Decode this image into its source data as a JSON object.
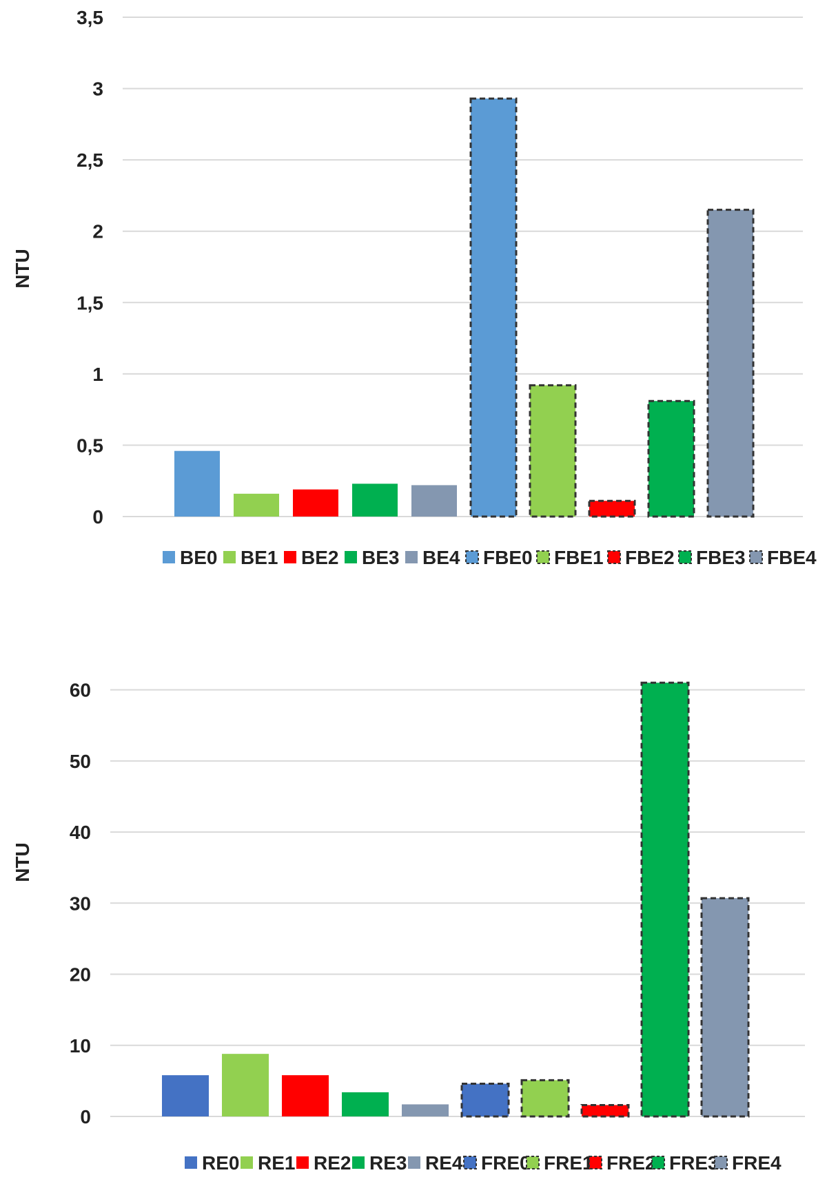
{
  "chart_data": [
    {
      "type": "bar",
      "title": "",
      "xlabel": "",
      "ylabel": "NTU",
      "ylim": [
        0,
        3.5
      ],
      "yticks": [
        "0",
        "0,5",
        "1",
        "1,5",
        "2",
        "2,5",
        "3",
        "3,5"
      ],
      "ytick_values": [
        0,
        0.5,
        1,
        1.5,
        2,
        2.5,
        3,
        3.5
      ],
      "grid": true,
      "legend_position": "bottom",
      "series": [
        {
          "name": "BE0",
          "values": [
            0.46
          ],
          "color": "#5B9BD5",
          "border": "none"
        },
        {
          "name": "BE1",
          "values": [
            0.16
          ],
          "color": "#92D050",
          "border": "none"
        },
        {
          "name": "BE2",
          "values": [
            0.19
          ],
          "color": "#FF0000",
          "border": "none"
        },
        {
          "name": "BE3",
          "values": [
            0.23
          ],
          "color": "#00B050",
          "border": "none"
        },
        {
          "name": "BE4",
          "values": [
            0.22
          ],
          "color": "#8497B0",
          "border": "none"
        },
        {
          "name": "FBE0",
          "values": [
            2.93
          ],
          "color": "#5B9BD5",
          "border": "dashed"
        },
        {
          "name": "FBE1",
          "values": [
            0.92
          ],
          "color": "#92D050",
          "border": "dashed"
        },
        {
          "name": "FBE2",
          "values": [
            0.11
          ],
          "color": "#FF0000",
          "border": "dashed"
        },
        {
          "name": "FBE3",
          "values": [
            0.81
          ],
          "color": "#00B050",
          "border": "dashed"
        },
        {
          "name": "FBE4",
          "values": [
            2.15
          ],
          "color": "#8497B0",
          "border": "dashed"
        }
      ]
    },
    {
      "type": "bar",
      "title": "",
      "xlabel": "",
      "ylabel": "NTU",
      "ylim": [
        0,
        65
      ],
      "yticks": [
        "0",
        "10",
        "20",
        "30",
        "40",
        "50",
        "60"
      ],
      "ytick_values": [
        0,
        10,
        20,
        30,
        40,
        50,
        60
      ],
      "grid": true,
      "legend_position": "bottom",
      "series": [
        {
          "name": "RE0",
          "values": [
            5.8
          ],
          "color": "#4472C4",
          "border": "none"
        },
        {
          "name": "RE1",
          "values": [
            8.8
          ],
          "color": "#92D050",
          "border": "none"
        },
        {
          "name": "RE2",
          "values": [
            5.8
          ],
          "color": "#FF0000",
          "border": "none"
        },
        {
          "name": "RE3",
          "values": [
            3.4
          ],
          "color": "#00B050",
          "border": "none"
        },
        {
          "name": "RE4",
          "values": [
            1.7
          ],
          "color": "#8497B0",
          "border": "none"
        },
        {
          "name": "FRE0",
          "values": [
            4.6
          ],
          "color": "#4472C4",
          "border": "dashed"
        },
        {
          "name": "FRE1",
          "values": [
            5.1
          ],
          "color": "#92D050",
          "border": "dashed"
        },
        {
          "name": "FRE2",
          "values": [
            1.6
          ],
          "color": "#FF0000",
          "border": "dashed"
        },
        {
          "name": "FRE3",
          "values": [
            61
          ],
          "color": "#00B050",
          "border": "dashed"
        },
        {
          "name": "FRE4",
          "values": [
            30.7
          ],
          "color": "#8497B0",
          "border": "dashed"
        }
      ]
    }
  ]
}
